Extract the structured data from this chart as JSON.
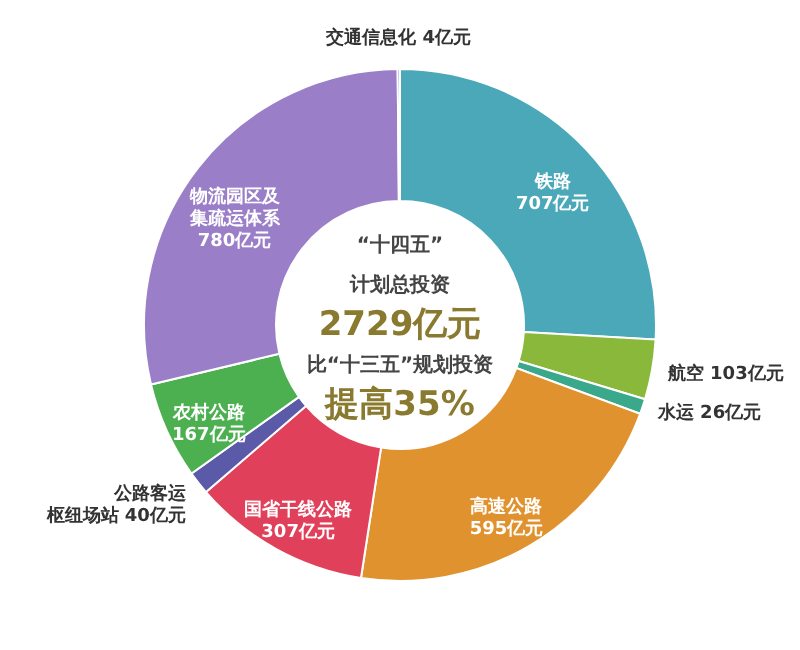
{
  "chart_data": {
    "type": "donut",
    "categories": [
      "铁路",
      "航空",
      "水运",
      "高速公路",
      "国省干线公路",
      "公路客运枢纽场站",
      "农村公路",
      "物流园区及集疏运体系",
      "交通信息化"
    ],
    "values": [
      707,
      103,
      26,
      595,
      307,
      40,
      167,
      780,
      4
    ],
    "value_labels": [
      "707亿元",
      "103亿元",
      "26亿元",
      "595亿元",
      "307亿元",
      "40亿元",
      "167亿元",
      "780亿元",
      "4亿元"
    ],
    "colors": [
      "#4aa8b8",
      "#8ab83a",
      "#3aa88a",
      "#e0922e",
      "#e0405a",
      "#5a5aa8",
      "#4caf50",
      "#9a7fc8",
      "#3c6fbf"
    ],
    "annotations": [
      "“十四五”",
      "计划总投资",
      "2729亿元",
      "比“十三五”规划投资",
      "提高35%"
    ],
    "legend": false
  }
}
